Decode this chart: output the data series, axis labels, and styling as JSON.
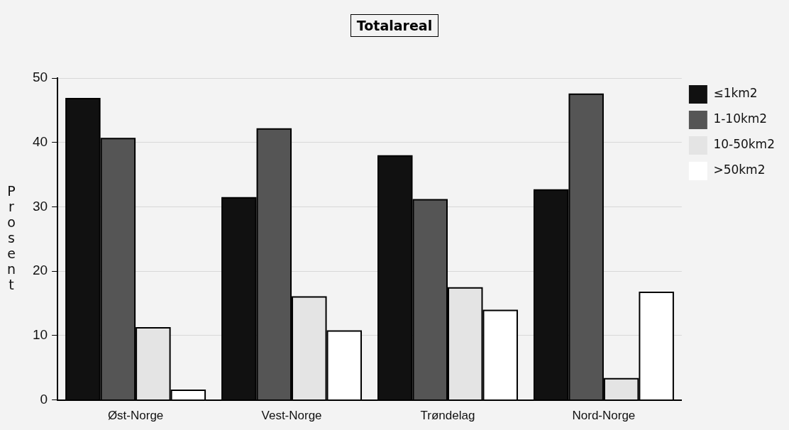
{
  "chart_data": {
    "type": "bar",
    "title": "Totalareal",
    "ylabel": "Prosent",
    "categories": [
      "Øst-Norge",
      "Vest-Norge",
      "Trøndelag",
      "Nord-Norge"
    ],
    "series": [
      {
        "name": "≤1km2",
        "color": "#111111",
        "values": [
          46.8,
          31.4,
          37.9,
          32.6
        ]
      },
      {
        "name": "1-10km2",
        "color": "#555555",
        "values": [
          40.6,
          42.1,
          31.1,
          47.5
        ]
      },
      {
        "name": "10-50km2",
        "color": "#e4e4e4",
        "values": [
          11.2,
          16.0,
          17.4,
          3.3
        ]
      },
      {
        "name": ">50km2",
        "color": "#ffffff",
        "values": [
          1.5,
          10.7,
          13.9,
          16.7
        ]
      }
    ],
    "ylim": [
      0,
      50
    ],
    "yticks": [
      0,
      10,
      20,
      30,
      40,
      50
    ],
    "grid": "y",
    "legend": "top right"
  }
}
